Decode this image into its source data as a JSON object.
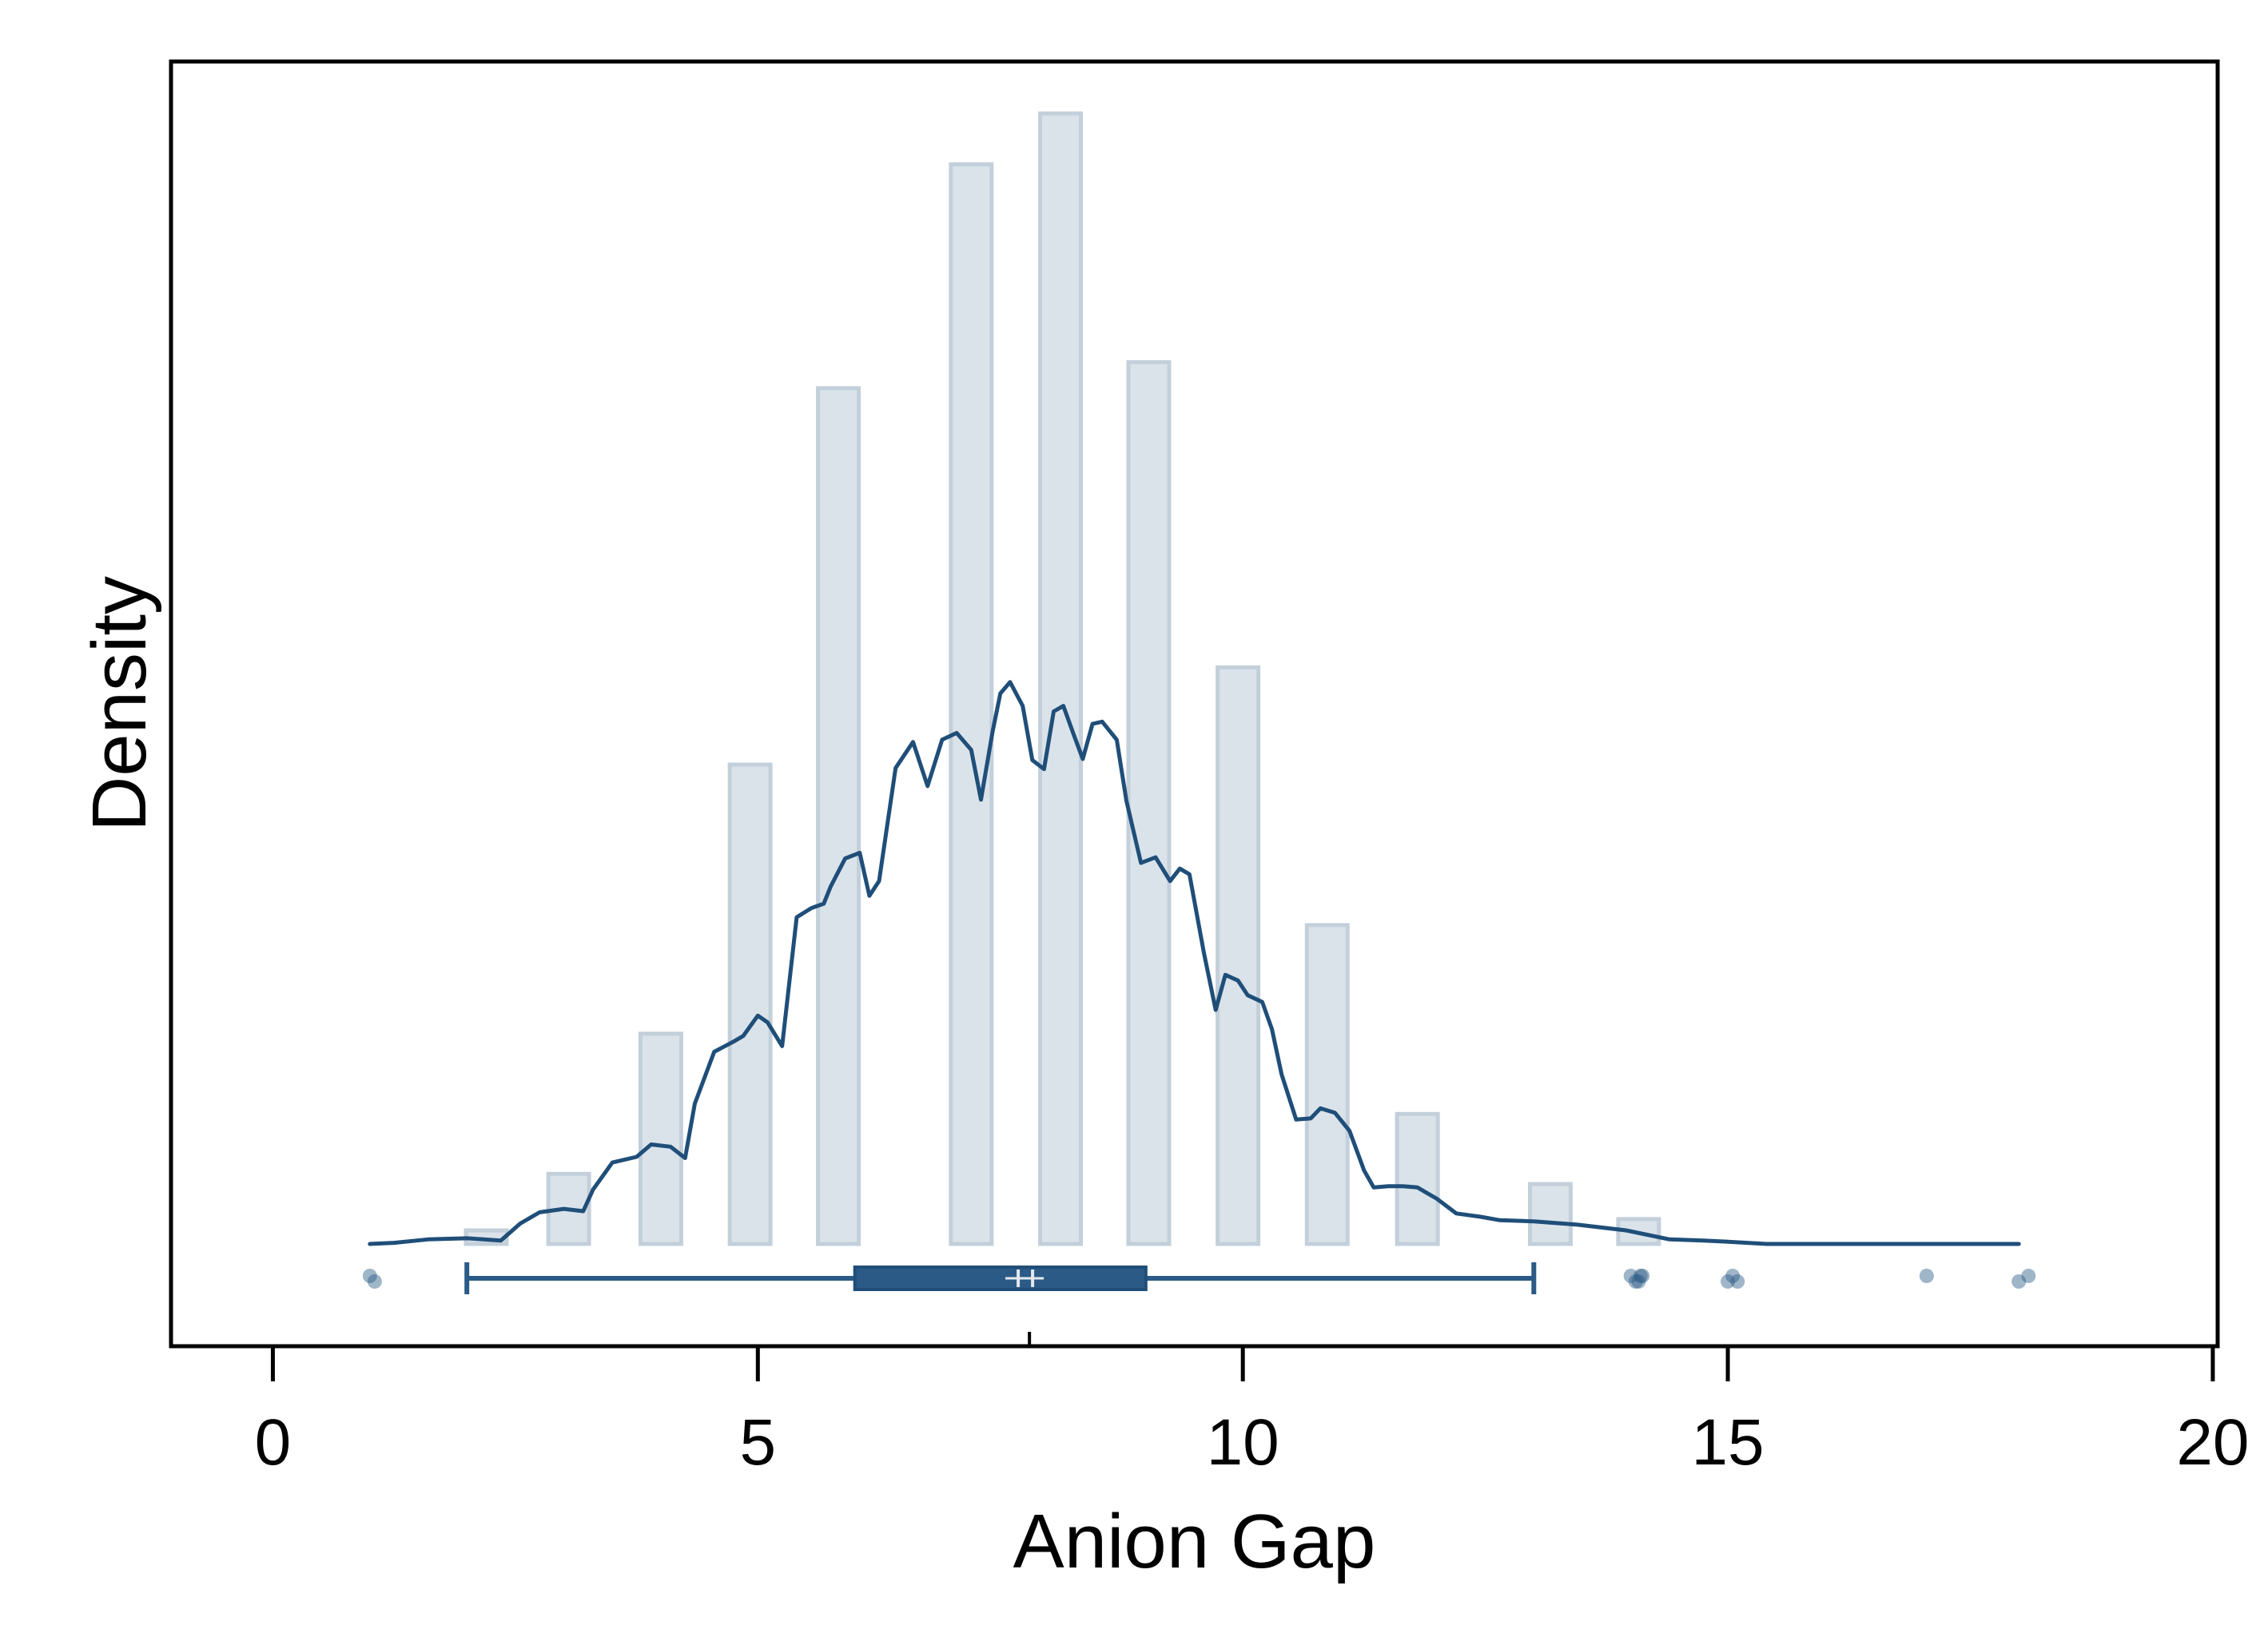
{
  "chart_data": {
    "type": "bar",
    "xlabel": "Anion Gap",
    "ylabel": "Density",
    "xlim": [
      -1.05,
      20.05
    ],
    "x_ticks": [
      0,
      5,
      10,
      15,
      20
    ],
    "x_tick_labels": [
      "0",
      "5",
      "10",
      "15",
      "20"
    ],
    "y_ticks_shown": false,
    "grid": false,
    "legend": "none",
    "colors": {
      "bar_fill": "#dbe3ea",
      "bar_stroke": "#c3cfda",
      "line": "#1f4e79",
      "box": "#2b5a86",
      "point": "#2b5a86",
      "frame": "#000000"
    },
    "histogram": {
      "bar_width": 0.42,
      "bars": [
        {
          "x": 2.2,
          "density": 0.012
        },
        {
          "x": 3.05,
          "density": 0.062
        },
        {
          "x": 4.0,
          "density": 0.186
        },
        {
          "x": 4.92,
          "density": 0.424
        },
        {
          "x": 5.83,
          "density": 0.757
        },
        {
          "x": 7.2,
          "density": 0.955
        },
        {
          "x": 8.12,
          "density": 1.0
        },
        {
          "x": 9.03,
          "density": 0.78
        },
        {
          "x": 9.95,
          "density": 0.51
        },
        {
          "x": 10.87,
          "density": 0.282
        },
        {
          "x": 11.8,
          "density": 0.115
        },
        {
          "x": 13.17,
          "density": 0.053
        },
        {
          "x": 14.08,
          "density": 0.022
        }
      ]
    },
    "density_curve": {
      "x": [
        1.0,
        1.25,
        1.6,
        2.0,
        2.35,
        2.55,
        2.75,
        3.0,
        3.2,
        3.3,
        3.5,
        3.75,
        3.9,
        4.1,
        4.25,
        4.35,
        4.55,
        4.75,
        4.85,
        5.0,
        5.1,
        5.25,
        5.4,
        5.55,
        5.68,
        5.75,
        5.9,
        6.05,
        6.15,
        6.25,
        6.42,
        6.6,
        6.75,
        6.9,
        7.05,
        7.2,
        7.3,
        7.42,
        7.5,
        7.6,
        7.73,
        7.83,
        7.95,
        8.05,
        8.15,
        8.25,
        8.35,
        8.45,
        8.55,
        8.7,
        8.8,
        8.95,
        9.1,
        9.25,
        9.35,
        9.45,
        9.6,
        9.72,
        9.82,
        9.95,
        10.05,
        10.2,
        10.3,
        10.4,
        10.55,
        10.7,
        10.8,
        10.95,
        11.1,
        11.25,
        11.35,
        11.5,
        11.65,
        11.8,
        12.0,
        12.2,
        12.45,
        12.65,
        13.0,
        13.45,
        13.95,
        14.4,
        14.75,
        15.0,
        15.4,
        15.75,
        16.5,
        17.2,
        18.0
      ],
      "density": [
        0.0,
        0.001,
        0.004,
        0.005,
        0.003,
        0.018,
        0.028,
        0.031,
        0.029,
        0.048,
        0.072,
        0.077,
        0.088,
        0.086,
        0.076,
        0.124,
        0.17,
        0.179,
        0.184,
        0.202,
        0.196,
        0.175,
        0.289,
        0.297,
        0.301,
        0.316,
        0.341,
        0.346,
        0.308,
        0.321,
        0.421,
        0.444,
        0.405,
        0.446,
        0.452,
        0.437,
        0.393,
        0.453,
        0.487,
        0.497,
        0.476,
        0.428,
        0.42,
        0.471,
        0.476,
        0.452,
        0.429,
        0.46,
        0.462,
        0.446,
        0.392,
        0.337,
        0.342,
        0.321,
        0.332,
        0.327,
        0.257,
        0.207,
        0.238,
        0.233,
        0.22,
        0.214,
        0.19,
        0.15,
        0.11,
        0.111,
        0.12,
        0.116,
        0.1,
        0.065,
        0.05,
        0.051,
        0.051,
        0.05,
        0.04,
        0.027,
        0.024,
        0.021,
        0.02,
        0.017,
        0.012,
        0.004,
        0.003,
        0.002,
        0.0,
        0.0,
        0.0,
        0.0,
        0.0
      ]
    },
    "boxplot": {
      "whisker_low": 2,
      "q1": 6,
      "median": 7.75,
      "q3": 9,
      "whisker_high": 13,
      "mean": 7.8,
      "outliers": [
        1,
        1.05,
        14,
        14.05,
        14.1,
        14.08,
        14.12,
        15,
        15.05,
        15.1,
        17.05,
        18,
        18.1
      ]
    }
  }
}
